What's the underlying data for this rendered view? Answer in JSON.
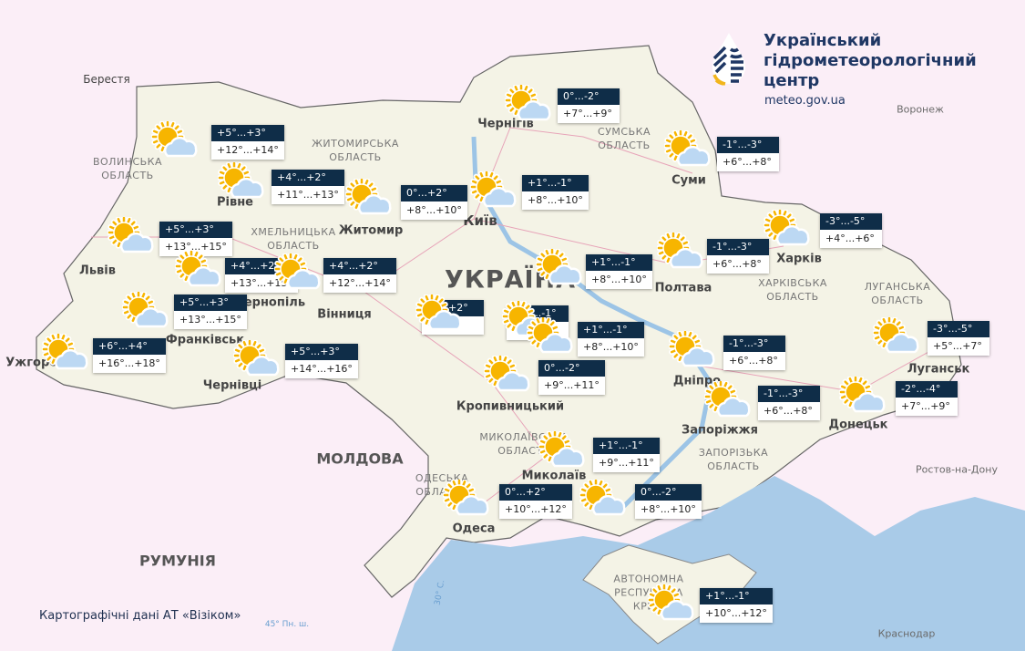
{
  "header": {
    "org_name_lines": [
      "Український",
      "гідрометеорологічний",
      "центр"
    ],
    "url": "meteo.gov.ua"
  },
  "attribution": "Картографічні дані АТ «Візіком»",
  "colors": {
    "night_band": "#0f2d48",
    "sun": "#f7b500",
    "cloud": "#bcd8f3",
    "sea": "#a9cbe8",
    "land": "#f6f5ee",
    "abroad": "#fbeef7"
  },
  "map_labels": {
    "country": "УКРАЇНА",
    "cities": [
      "Берестя",
      "Чернігів",
      "Київ",
      "Житомир",
      "Рівне",
      "Львів",
      "Тернопіль",
      "Франківськ",
      "Ужгород",
      "Чернівці",
      "Вінниця",
      "Полтава",
      "Суми",
      "Харків",
      "Дніпро",
      "Запоріжжя",
      "Донецьк",
      "Луганськ",
      "Одеса",
      "Кропивницький",
      "Миколаїв",
      "Воронеж",
      "Ростов-на-Дону",
      "Краснодар"
    ],
    "countries": [
      "МОЛДОВА",
      "РУМУНІЯ"
    ],
    "regions": [
      "СУМСЬКА ОБЛАСТЬ",
      "ХАРКІВСЬКА ОБЛАСТЬ",
      "ЛУГАНСЬКА ОБЛАСТЬ",
      "ЗАПОРІЗЬКА ОБЛАСТЬ",
      "МИКОЛАЇВСЬКА ОБЛАСТЬ",
      "ОДЕСЬКА ОБЛАСТЬ",
      "ЖИТОМИРСЬКА ОБЛАСТЬ",
      "ВОЛИНСЬКА ОБЛАСТЬ",
      "ХМЕЛЬНИЦЬКА ОБЛАСТЬ",
      "АВТОНОМНА РЕСПУБЛІКА КРИМ"
    ],
    "parallel": "45° Пн. ш.",
    "meridian": "30° С."
  },
  "forecast_icon": "sun-behind-cloud-icon",
  "stations": [
    {
      "id": "volyn",
      "night": "+5°...+3°",
      "day": "+12°...+14°"
    },
    {
      "id": "rivne",
      "night": "+4°...+2°",
      "day": "+11°...+13°"
    },
    {
      "id": "zhytomyr",
      "night": "0°...+2°",
      "day": "+8°...+10°"
    },
    {
      "id": "kyiv",
      "night": "+1°...-1°",
      "day": "+8°...+10°"
    },
    {
      "id": "chernihiv",
      "night": "0°...-2°",
      "day": "+7°...+9°"
    },
    {
      "id": "sumy",
      "night": "-1°...-3°",
      "day": "+6°...+8°"
    },
    {
      "id": "kharkiv",
      "night": "-3°...-5°",
      "day": "+4°...+6°"
    },
    {
      "id": "poltava",
      "night": "-1°...-3°",
      "day": "+6°...+8°"
    },
    {
      "id": "lviv",
      "night": "+5°...+3°",
      "day": "+13°...+15°"
    },
    {
      "id": "ternopil",
      "night": "+4°...+2°",
      "day": "+13°...+15°"
    },
    {
      "id": "khmelnytskyi",
      "night": "+4°...+2°",
      "day": "+12°...+14°"
    },
    {
      "id": "ivano-frankivsk",
      "night": "+5°...+3°",
      "day": "+13°...+15°"
    },
    {
      "id": "uzhhorod",
      "night": "+6°...+4°",
      "day": "+16°...+18°"
    },
    {
      "id": "chernivtsi",
      "night": "+5°...+3°",
      "day": "+14°...+16°"
    },
    {
      "id": "vinnytsia",
      "night": "0°...+2°",
      "day": "+9°..."
    },
    {
      "id": "uman",
      "night": "+1°...-1°",
      "day": "+9°..."
    },
    {
      "id": "kropyvnytskyi",
      "night": "0°...-2°",
      "day": "+9°...+11°"
    },
    {
      "id": "cherkasy",
      "night": "+1°...-1°",
      "day": "+8°...+10°"
    },
    {
      "id": "center",
      "night": "+1°...-1°",
      "day": "+8°...+10°"
    },
    {
      "id": "dnipro",
      "night": "-1°...-3°",
      "day": "+6°...+8°"
    },
    {
      "id": "zaporizhzhia",
      "night": "-1°...-3°",
      "day": "+6°...+8°"
    },
    {
      "id": "donetsk",
      "night": "-2°...-4°",
      "day": "+7°...+9°"
    },
    {
      "id": "luhansk",
      "night": "-3°...-5°",
      "day": "+5°...+7°"
    },
    {
      "id": "mykolaiv",
      "night": "+1°...-1°",
      "day": "+9°...+11°"
    },
    {
      "id": "odesa",
      "night": "0°...+2°",
      "day": "+10°...+12°"
    },
    {
      "id": "kherson",
      "night": "0°...-2°",
      "day": "+8°...+10°"
    },
    {
      "id": "crimea",
      "night": "+1°...-1°",
      "day": "+10°...+12°"
    }
  ]
}
